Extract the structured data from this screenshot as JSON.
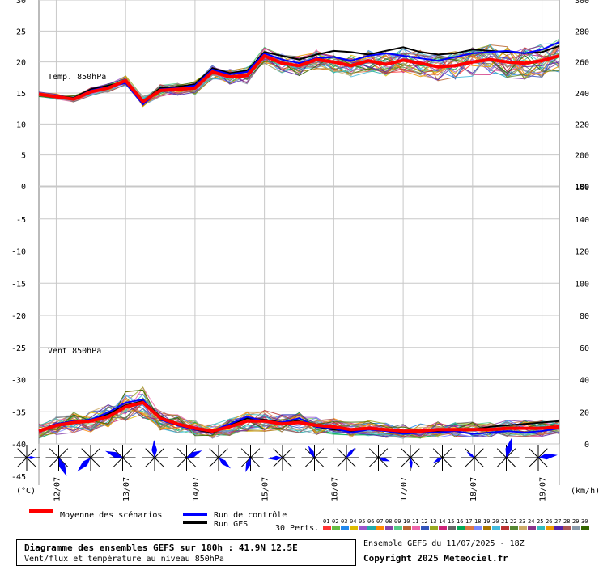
{
  "chart_data": {
    "type": "line",
    "title": "Diagramme des ensembles GEFS sur 180h : 41.9N 12.5E",
    "subtitle": "Vent/flux et température au niveau 850hPa",
    "run_label": "Ensemble GEFS du 11/07/2025 - 18Z",
    "copyright": "Copyright 2025 Meteociel.fr",
    "unit_left": "(°C)",
    "unit_right": "(km/h)",
    "panels": [
      {
        "name": "Temp. 850hPa",
        "left_ticks": [
          "30",
          "25",
          "20",
          "15",
          "10",
          "5",
          "0"
        ],
        "right_ticks": [
          "300",
          "280",
          "260",
          "240",
          "220",
          "200",
          "180"
        ],
        "ylim": [
          0,
          30
        ]
      },
      {
        "name": "Vent 850hPa",
        "left_ticks": [
          "-5",
          "-10",
          "-15",
          "-20",
          "-25",
          "-30",
          "-35",
          "-40",
          "-45"
        ],
        "right_ticks": [
          "160",
          "140",
          "120",
          "100",
          "80",
          "60",
          "40",
          "20",
          "0"
        ],
        "ylim": [
          0,
          180
        ]
      }
    ],
    "x_dates": [
      "12/07",
      "13/07",
      "14/07",
      "15/07",
      "16/07",
      "17/07",
      "18/07",
      "19/07"
    ],
    "x_hours": [
      0,
      180
    ],
    "temp_mean": {
      "name": "Moyenne des scénarios",
      "x": [
        0,
        6,
        12,
        18,
        24,
        30,
        36,
        42,
        48,
        54,
        60,
        66,
        72,
        78,
        84,
        90,
        96,
        102,
        108,
        114,
        120,
        126,
        132,
        138,
        144,
        150,
        156,
        162,
        168,
        174,
        180
      ],
      "y": [
        14.8,
        14.4,
        14.0,
        15.2,
        15.8,
        17.0,
        13.6,
        15.4,
        15.6,
        15.8,
        18.4,
        17.6,
        17.8,
        21.0,
        19.8,
        19.4,
        20.4,
        20.0,
        19.4,
        20.2,
        19.6,
        20.3,
        19.8,
        19.2,
        19.4,
        20.0,
        20.4,
        20.0,
        19.8,
        20.2,
        21.0
      ]
    },
    "temp_control": {
      "name": "Run de contrôle",
      "x": [
        0,
        6,
        12,
        18,
        24,
        30,
        36,
        42,
        48,
        54,
        60,
        66,
        72,
        78,
        84,
        90,
        96,
        102,
        108,
        114,
        120,
        126,
        132,
        138,
        144,
        150,
        156,
        162,
        168,
        174,
        180
      ],
      "y": [
        14.8,
        14.4,
        14.1,
        15.4,
        16.0,
        16.6,
        13.2,
        15.6,
        15.8,
        16.2,
        18.8,
        18.0,
        18.4,
        21.4,
        20.4,
        19.8,
        20.6,
        20.8,
        20.2,
        21.0,
        21.4,
        21.0,
        20.6,
        20.2,
        20.8,
        21.4,
        21.6,
        21.8,
        21.4,
        22.0,
        23.2
      ]
    },
    "temp_gfs": {
      "name": "Run GFS",
      "x": [
        0,
        6,
        12,
        18,
        24,
        30,
        36,
        42,
        48,
        54,
        60,
        66,
        72,
        78,
        84,
        90,
        96,
        102,
        108,
        114,
        120,
        126,
        132,
        138,
        144,
        150,
        156,
        162,
        168,
        174,
        180
      ],
      "y": [
        14.8,
        14.5,
        14.2,
        15.6,
        16.2,
        16.8,
        13.6,
        15.8,
        16.0,
        16.4,
        19.0,
        18.2,
        18.6,
        21.6,
        21.0,
        20.4,
        21.2,
        21.8,
        21.6,
        21.2,
        21.8,
        22.4,
        21.6,
        21.2,
        21.4,
        22.0,
        21.8,
        21.6,
        21.4,
        21.6,
        22.6
      ]
    },
    "wind_mean": {
      "name": "Moyenne des scénarios",
      "x": [
        0,
        6,
        12,
        18,
        24,
        30,
        36,
        42,
        48,
        54,
        60,
        66,
        72,
        78,
        84,
        90,
        96,
        102,
        108,
        114,
        120,
        126,
        132,
        138,
        144,
        150,
        156,
        162,
        168,
        174,
        180
      ],
      "y": [
        9,
        13,
        15,
        16,
        19,
        26,
        29,
        18,
        14,
        11,
        9,
        12,
        16,
        16,
        14,
        15,
        13,
        12,
        10,
        11,
        10,
        9,
        9,
        10,
        10,
        10,
        10,
        11,
        11,
        11,
        12
      ]
    },
    "wind_control": {
      "name": "Run de contrôle",
      "x": [
        0,
        6,
        12,
        18,
        24,
        30,
        36,
        42,
        48,
        54,
        60,
        66,
        72,
        78,
        84,
        90,
        96,
        102,
        108,
        114,
        120,
        126,
        132,
        138,
        144,
        150,
        156,
        162,
        168,
        174,
        180
      ],
      "y": [
        9,
        14,
        16,
        17,
        22,
        29,
        31,
        17,
        13,
        10,
        9,
        14,
        19,
        16,
        15,
        18,
        12,
        11,
        8,
        10,
        9,
        7,
        8,
        8,
        9,
        7,
        8,
        9,
        8,
        9,
        11
      ]
    },
    "wind_gfs": {
      "name": "Run GFS",
      "x": [
        0,
        6,
        12,
        18,
        24,
        30,
        36,
        42,
        48,
        54,
        60,
        66,
        72,
        78,
        84,
        90,
        96,
        102,
        108,
        114,
        120,
        126,
        132,
        138,
        144,
        150,
        156,
        162,
        168,
        174,
        180
      ],
      "y": [
        9,
        14,
        16,
        17,
        21,
        27,
        30,
        19,
        14,
        10,
        8,
        13,
        18,
        17,
        15,
        16,
        12,
        10,
        9,
        11,
        10,
        8,
        9,
        9,
        10,
        10,
        12,
        13,
        14,
        15,
        16
      ]
    },
    "perturbations_label": "30 Perts.",
    "perturbations": [
      {
        "name": "01",
        "color": "#ff3333"
      },
      {
        "name": "02",
        "color": "#66bb44"
      },
      {
        "name": "03",
        "color": "#2288ee"
      },
      {
        "name": "04",
        "color": "#ddbb00"
      },
      {
        "name": "05",
        "color": "#9955cc"
      },
      {
        "name": "06",
        "color": "#22aaaa"
      },
      {
        "name": "07",
        "color": "#ff8800"
      },
      {
        "name": "08",
        "color": "#8844aa"
      },
      {
        "name": "09",
        "color": "#55cc88"
      },
      {
        "name": "10",
        "color": "#bb6633"
      },
      {
        "name": "11",
        "color": "#ee66aa"
      },
      {
        "name": "12",
        "color": "#3355bb"
      },
      {
        "name": "13",
        "color": "#99aa22"
      },
      {
        "name": "14",
        "color": "#cc2277"
      },
      {
        "name": "15",
        "color": "#666666"
      },
      {
        "name": "16",
        "color": "#00aa55"
      },
      {
        "name": "17",
        "color": "#dd7744"
      },
      {
        "name": "18",
        "color": "#7788ff"
      },
      {
        "name": "19",
        "color": "#aa7700"
      },
      {
        "name": "20",
        "color": "#44bbdd"
      },
      {
        "name": "21",
        "color": "#bb3333"
      },
      {
        "name": "22",
        "color": "#558833"
      },
      {
        "name": "23",
        "color": "#ccaa66"
      },
      {
        "name": "24",
        "color": "#883388"
      },
      {
        "name": "25",
        "color": "#33bbbb"
      },
      {
        "name": "26",
        "color": "#ee9900"
      },
      {
        "name": "27",
        "color": "#5522aa"
      },
      {
        "name": "28",
        "color": "#aa5555"
      },
      {
        "name": "29",
        "color": "#8899aa"
      },
      {
        "name": "30",
        "color": "#336600"
      }
    ],
    "colors": {
      "mean": "#ff0000",
      "control": "#0000ff",
      "gfs": "#000000",
      "grid": "#c8c8c8",
      "roses": "#0000ff"
    },
    "grid": true
  }
}
